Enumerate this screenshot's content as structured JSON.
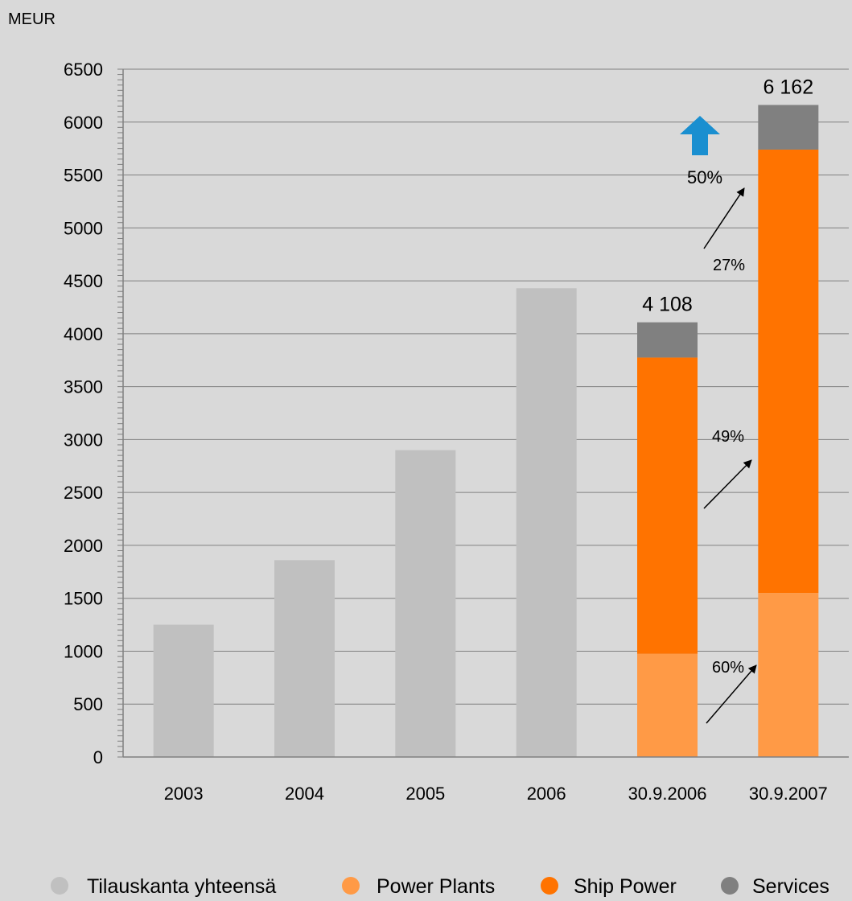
{
  "chart_data": {
    "type": "bar",
    "stacked": true,
    "unit_label": "MEUR",
    "categories": [
      "2003",
      "2004",
      "2005",
      "2006",
      "30.9.2006",
      "30.9.2007"
    ],
    "ylim": [
      0,
      6500
    ],
    "yticks": [
      0,
      500,
      1000,
      1500,
      2000,
      2500,
      3000,
      3500,
      4000,
      4500,
      5000,
      5500,
      6000,
      6500
    ],
    "grid": true,
    "legend_position": "bottom",
    "series": [
      {
        "name": "Tilauskanta yhteensä",
        "color": "#c0c0c0",
        "values": [
          1250,
          1860,
          2900,
          4430,
          null,
          null
        ]
      },
      {
        "name": "Power Plants",
        "color": "#ff9a46",
        "values": [
          null,
          null,
          null,
          null,
          975,
          1550
        ]
      },
      {
        "name": "Ship Power",
        "color": "#ff7300",
        "values": [
          null,
          null,
          null,
          null,
          2800,
          4190
        ]
      },
      {
        "name": "Services",
        "color": "#808080",
        "values": [
          null,
          null,
          null,
          null,
          333,
          422
        ]
      }
    ],
    "totals": [
      {
        "category": "30.9.2006",
        "label": "4 108"
      },
      {
        "category": "30.9.2007",
        "label": "6 162"
      }
    ],
    "annotations": [
      {
        "text": "50%",
        "series": "Total",
        "icon": "up-arrow-icon",
        "color": "#1a8fd0"
      },
      {
        "text": "27%",
        "series": "Services"
      },
      {
        "text": "49%",
        "series": "Ship Power"
      },
      {
        "text": "60%",
        "series": "Power Plants"
      }
    ]
  }
}
